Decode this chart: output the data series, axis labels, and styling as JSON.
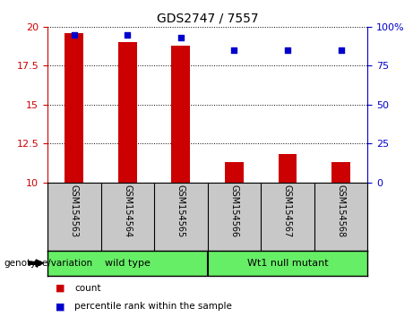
{
  "title": "GDS2747 / 7557",
  "samples": [
    "GSM154563",
    "GSM154564",
    "GSM154565",
    "GSM154566",
    "GSM154567",
    "GSM154568"
  ],
  "bar_values": [
    19.6,
    19.0,
    18.8,
    11.3,
    11.8,
    11.3
  ],
  "bar_bottom": 10,
  "dot_values": [
    95,
    95,
    93,
    85,
    85,
    85
  ],
  "bar_color": "#cc0000",
  "dot_color": "#0000cc",
  "ylim_left": [
    10,
    20
  ],
  "ylim_right": [
    0,
    100
  ],
  "yticks_left": [
    10,
    12.5,
    15,
    17.5,
    20
  ],
  "ytick_labels_left": [
    "10",
    "12.5",
    "15",
    "17.5",
    "20"
  ],
  "yticks_right": [
    0,
    25,
    50,
    75,
    100
  ],
  "ytick_labels_right": [
    "0",
    "25",
    "50",
    "75",
    "100%"
  ],
  "group1_label": "wild type",
  "group2_label": "Wt1 null mutant",
  "genotype_label": "genotype/variation",
  "legend_count": "count",
  "legend_pct": "percentile rank within the sample",
  "bar_color_leg": "#cc0000",
  "dot_color_leg": "#0000cc",
  "tick_area_color": "#c8c8c8",
  "group_area_color": "#66ee66",
  "bar_width": 0.35
}
